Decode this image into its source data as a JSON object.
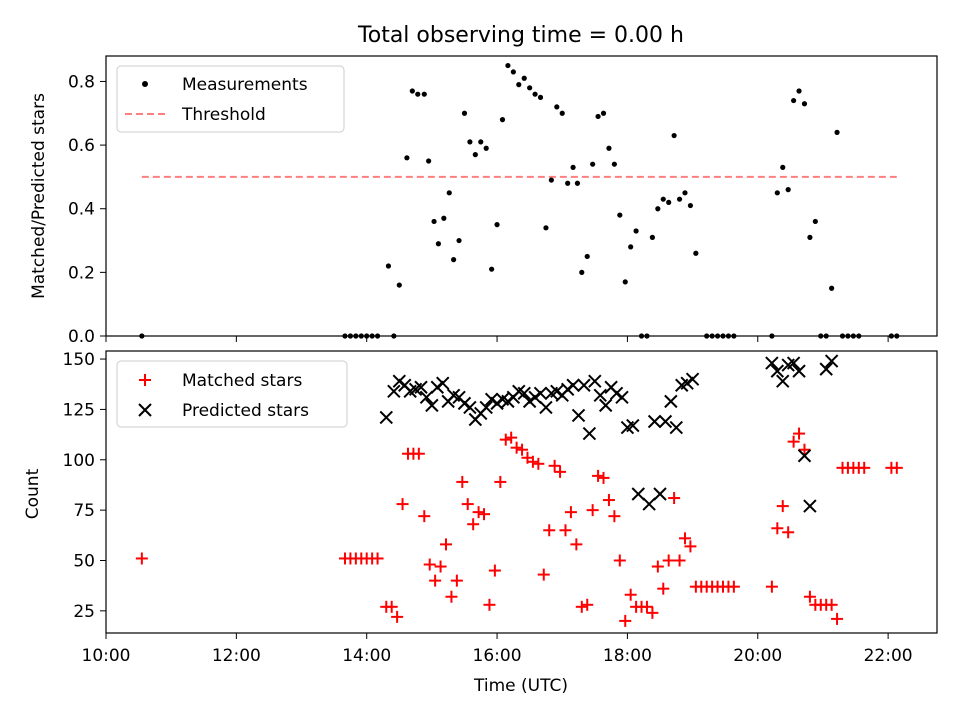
{
  "figure": {
    "title": "Total observing time = 0.00 h"
  },
  "chart_data": [
    {
      "type": "scatter",
      "panel": "top",
      "title": "Total observing time = 0.00 h",
      "xlabel": "",
      "ylabel": "Matched/Predicted stars",
      "xlim": [
        "10:00",
        "22:45"
      ],
      "ylim": [
        0,
        0.88
      ],
      "yticks": [
        0.0,
        0.2,
        0.4,
        0.6,
        0.8
      ],
      "ytick_labels": [
        "0.0",
        "0.2",
        "0.4",
        "0.6",
        "0.8"
      ],
      "legend_position": "top-left",
      "legend": [
        {
          "label": "Measurements",
          "marker": "dot",
          "color": "#000000"
        },
        {
          "label": "Threshold",
          "marker": "dashed-line",
          "color": "#ff7f7f"
        }
      ],
      "threshold": {
        "value": 0.5,
        "x_start": "10:33",
        "x_end": "22:08",
        "color": "#ff7f7f"
      },
      "series": [
        {
          "name": "Measurements",
          "color": "#000000",
          "points": [
            [
              "10:33",
              0
            ],
            [
              "13:40",
              0
            ],
            [
              "13:45",
              0
            ],
            [
              "13:50",
              0
            ],
            [
              "13:55",
              0
            ],
            [
              "14:00",
              0
            ],
            [
              "14:05",
              0
            ],
            [
              "14:10",
              0
            ],
            [
              "14:20",
              0.22
            ],
            [
              "14:25",
              0
            ],
            [
              "14:30",
              0.16
            ],
            [
              "14:37",
              0.56
            ],
            [
              "14:42",
              0.77
            ],
            [
              "14:47",
              0.76
            ],
            [
              "14:53",
              0.76
            ],
            [
              "14:57",
              0.55
            ],
            [
              "15:02",
              0.36
            ],
            [
              "15:06",
              0.29
            ],
            [
              "15:11",
              0.37
            ],
            [
              "15:16",
              0.45
            ],
            [
              "15:20",
              0.24
            ],
            [
              "15:25",
              0.3
            ],
            [
              "15:30",
              0.7
            ],
            [
              "15:35",
              0.61
            ],
            [
              "15:40",
              0.57
            ],
            [
              "15:45",
              0.61
            ],
            [
              "15:50",
              0.59
            ],
            [
              "15:55",
              0.21
            ],
            [
              "16:00",
              0.35
            ],
            [
              "16:05",
              0.68
            ],
            [
              "16:10",
              0.85
            ],
            [
              "16:15",
              0.83
            ],
            [
              "16:20",
              0.79
            ],
            [
              "16:25",
              0.81
            ],
            [
              "16:30",
              0.78
            ],
            [
              "16:35",
              0.76
            ],
            [
              "16:40",
              0.75
            ],
            [
              "16:45",
              0.34
            ],
            [
              "16:50",
              0.49
            ],
            [
              "16:55",
              0.72
            ],
            [
              "17:00",
              0.7
            ],
            [
              "17:05",
              0.48
            ],
            [
              "17:10",
              0.53
            ],
            [
              "17:14",
              0.48
            ],
            [
              "17:18",
              0.2
            ],
            [
              "17:23",
              0.25
            ],
            [
              "17:28",
              0.54
            ],
            [
              "17:33",
              0.69
            ],
            [
              "17:38",
              0.7
            ],
            [
              "17:43",
              0.59
            ],
            [
              "17:48",
              0.54
            ],
            [
              "17:53",
              0.38
            ],
            [
              "17:58",
              0.17
            ],
            [
              "18:03",
              0.28
            ],
            [
              "18:08",
              0.33
            ],
            [
              "18:13",
              0
            ],
            [
              "18:18",
              0
            ],
            [
              "18:23",
              0.31
            ],
            [
              "18:28",
              0.4
            ],
            [
              "18:33",
              0.43
            ],
            [
              "18:38",
              0.42
            ],
            [
              "18:43",
              0.63
            ],
            [
              "18:48",
              0.43
            ],
            [
              "18:53",
              0.45
            ],
            [
              "18:58",
              0.41
            ],
            [
              "19:03",
              0.26
            ],
            [
              "19:13",
              0
            ],
            [
              "19:18",
              0
            ],
            [
              "19:23",
              0
            ],
            [
              "19:28",
              0
            ],
            [
              "19:33",
              0
            ],
            [
              "19:38",
              0
            ],
            [
              "20:13",
              0
            ],
            [
              "20:18",
              0.45
            ],
            [
              "20:23",
              0.53
            ],
            [
              "20:28",
              0.46
            ],
            [
              "20:33",
              0.74
            ],
            [
              "20:38",
              0.77
            ],
            [
              "20:43",
              0.73
            ],
            [
              "20:48",
              0.31
            ],
            [
              "20:53",
              0.36
            ],
            [
              "20:58",
              0
            ],
            [
              "21:03",
              0
            ],
            [
              "21:08",
              0.15
            ],
            [
              "21:13",
              0.64
            ],
            [
              "21:18",
              0
            ],
            [
              "21:23",
              0
            ],
            [
              "21:28",
              0
            ],
            [
              "21:33",
              0
            ],
            [
              "22:03",
              0
            ],
            [
              "22:08",
              0
            ]
          ]
        }
      ]
    },
    {
      "type": "scatter",
      "panel": "bottom",
      "title": "",
      "xlabel": "Time (UTC)",
      "ylabel": "Count",
      "xlim": [
        "10:00",
        "22:45"
      ],
      "xticks": [
        "10:00",
        "12:00",
        "14:00",
        "16:00",
        "18:00",
        "20:00",
        "22:00"
      ],
      "ylim": [
        14,
        154
      ],
      "yticks": [
        25,
        50,
        75,
        100,
        125,
        150
      ],
      "legend_position": "top-left",
      "legend": [
        {
          "label": "Matched stars",
          "marker": "plus",
          "color": "#ff0000"
        },
        {
          "label": "Predicted stars",
          "marker": "x",
          "color": "#000000"
        }
      ],
      "series": [
        {
          "name": "Matched stars",
          "marker": "plus",
          "color": "#ff0000",
          "points": [
            [
              "10:33",
              51
            ],
            [
              "13:40",
              51
            ],
            [
              "13:45",
              51
            ],
            [
              "13:50",
              51
            ],
            [
              "13:55",
              51
            ],
            [
              "14:00",
              51
            ],
            [
              "14:05",
              51
            ],
            [
              "14:10",
              51
            ],
            [
              "14:18",
              27
            ],
            [
              "14:23",
              27
            ],
            [
              "14:28",
              22
            ],
            [
              "14:33",
              78
            ],
            [
              "14:38",
              103
            ],
            [
              "14:43",
              103
            ],
            [
              "14:48",
              103
            ],
            [
              "14:53",
              72
            ],
            [
              "14:58",
              48
            ],
            [
              "15:03",
              40
            ],
            [
              "15:08",
              47
            ],
            [
              "15:13",
              58
            ],
            [
              "15:18",
              32
            ],
            [
              "15:23",
              40
            ],
            [
              "15:28",
              89
            ],
            [
              "15:33",
              78
            ],
            [
              "15:38",
              68
            ],
            [
              "15:43",
              74
            ],
            [
              "15:48",
              73
            ],
            [
              "15:53",
              28
            ],
            [
              "15:58",
              45
            ],
            [
              "16:03",
              89
            ],
            [
              "16:08",
              110
            ],
            [
              "16:13",
              111
            ],
            [
              "16:18",
              106
            ],
            [
              "16:23",
              105
            ],
            [
              "16:28",
              101
            ],
            [
              "16:33",
              99
            ],
            [
              "16:38",
              98
            ],
            [
              "16:43",
              43
            ],
            [
              "16:48",
              65
            ],
            [
              "16:53",
              97
            ],
            [
              "16:58",
              94
            ],
            [
              "17:03",
              65
            ],
            [
              "17:08",
              74
            ],
            [
              "17:13",
              58
            ],
            [
              "17:18",
              27
            ],
            [
              "17:23",
              28
            ],
            [
              "17:28",
              75
            ],
            [
              "17:33",
              92
            ],
            [
              "17:38",
              91
            ],
            [
              "17:43",
              80
            ],
            [
              "17:48",
              72
            ],
            [
              "17:53",
              50
            ],
            [
              "17:58",
              20
            ],
            [
              "18:03",
              33
            ],
            [
              "18:08",
              27
            ],
            [
              "18:13",
              27
            ],
            [
              "18:18",
              27
            ],
            [
              "18:23",
              24
            ],
            [
              "18:28",
              47
            ],
            [
              "18:33",
              36
            ],
            [
              "18:38",
              50
            ],
            [
              "18:43",
              81
            ],
            [
              "18:48",
              50
            ],
            [
              "18:53",
              61
            ],
            [
              "18:58",
              57
            ],
            [
              "19:03",
              37
            ],
            [
              "19:08",
              37
            ],
            [
              "19:13",
              37
            ],
            [
              "19:18",
              37
            ],
            [
              "19:23",
              37
            ],
            [
              "19:28",
              37
            ],
            [
              "19:33",
              37
            ],
            [
              "19:38",
              37
            ],
            [
              "20:13",
              37
            ],
            [
              "20:18",
              66
            ],
            [
              "20:23",
              77
            ],
            [
              "20:28",
              64
            ],
            [
              "20:33",
              109
            ],
            [
              "20:38",
              113
            ],
            [
              "20:43",
              105
            ],
            [
              "20:48",
              32
            ],
            [
              "20:53",
              28
            ],
            [
              "20:58",
              28
            ],
            [
              "21:03",
              28
            ],
            [
              "21:08",
              28
            ],
            [
              "21:13",
              21
            ],
            [
              "21:18",
              96
            ],
            [
              "21:23",
              96
            ],
            [
              "21:28",
              96
            ],
            [
              "21:33",
              96
            ],
            [
              "21:38",
              96
            ],
            [
              "22:03",
              96
            ],
            [
              "22:08",
              96
            ]
          ]
        },
        {
          "name": "Predicted stars",
          "marker": "x",
          "color": "#000000",
          "points": [
            [
              "14:18",
              121
            ],
            [
              "14:25",
              134
            ],
            [
              "14:30",
              139
            ],
            [
              "14:35",
              137
            ],
            [
              "14:40",
              134
            ],
            [
              "14:45",
              135
            ],
            [
              "14:50",
              136
            ],
            [
              "14:55",
              131
            ],
            [
              "15:00",
              127
            ],
            [
              "15:05",
              136
            ],
            [
              "15:10",
              138
            ],
            [
              "15:15",
              129
            ],
            [
              "15:20",
              132
            ],
            [
              "15:25",
              131
            ],
            [
              "15:30",
              128
            ],
            [
              "15:35",
              126
            ],
            [
              "15:40",
              120
            ],
            [
              "15:45",
              123
            ],
            [
              "15:50",
              126
            ],
            [
              "15:55",
              130
            ],
            [
              "16:00",
              128
            ],
            [
              "16:05",
              130
            ],
            [
              "16:10",
              129
            ],
            [
              "16:15",
              131
            ],
            [
              "16:20",
              134
            ],
            [
              "16:25",
              133
            ],
            [
              "16:30",
              129
            ],
            [
              "16:35",
              131
            ],
            [
              "16:40",
              133
            ],
            [
              "16:45",
              126
            ],
            [
              "16:50",
              133
            ],
            [
              "16:55",
              134
            ],
            [
              "17:00",
              132
            ],
            [
              "17:05",
              135
            ],
            [
              "17:10",
              137
            ],
            [
              "17:15",
              122
            ],
            [
              "17:20",
              137
            ],
            [
              "17:25",
              113
            ],
            [
              "17:30",
              139
            ],
            [
              "17:35",
              132
            ],
            [
              "17:40",
              127
            ],
            [
              "17:45",
              136
            ],
            [
              "17:50",
              133
            ],
            [
              "17:55",
              131
            ],
            [
              "18:00",
              116
            ],
            [
              "18:05",
              117
            ],
            [
              "18:10",
              83
            ],
            [
              "18:20",
              78
            ],
            [
              "18:25",
              119
            ],
            [
              "18:30",
              83
            ],
            [
              "18:35",
              119
            ],
            [
              "18:40",
              129
            ],
            [
              "18:45",
              116
            ],
            [
              "18:50",
              137
            ],
            [
              "18:55",
              138
            ],
            [
              "19:00",
              140
            ],
            [
              "20:13",
              148
            ],
            [
              "20:18",
              144
            ],
            [
              "20:23",
              139
            ],
            [
              "20:28",
              147
            ],
            [
              "20:33",
              148
            ],
            [
              "20:38",
              144
            ],
            [
              "20:43",
              102
            ],
            [
              "20:48",
              77
            ],
            [
              "21:03",
              145
            ],
            [
              "21:08",
              149
            ]
          ]
        }
      ]
    }
  ]
}
